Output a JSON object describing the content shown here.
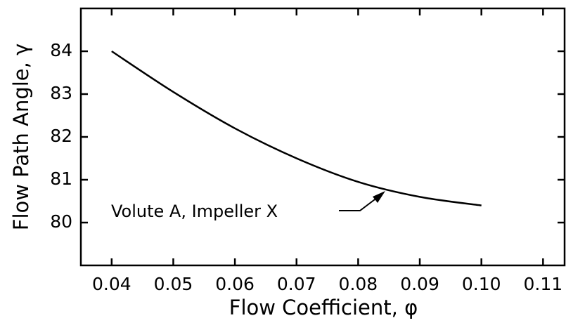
{
  "chart_data": {
    "type": "line",
    "x_label": "Flow Coefficient, φ",
    "y_label": "Flow Path Angle, γ",
    "x": [
      0.04,
      0.05,
      0.06,
      0.07,
      0.08,
      0.09,
      0.1
    ],
    "series": [
      {
        "name": "Volute A, Impeller X",
        "color": "#000000",
        "values": [
          84.0,
          83.05,
          82.2,
          81.5,
          80.95,
          80.6,
          80.4
        ]
      }
    ],
    "annotation": "Volute A, Impeller X",
    "xlim": [
      0.035,
      0.1135
    ],
    "ylim": [
      79.0,
      85.0
    ],
    "xticks": [
      0.04,
      0.05,
      0.06,
      0.07,
      0.08,
      0.09,
      {
        "value": 0.1,
        "label": "0.10"
      },
      0.11
    ],
    "yticks": [
      80,
      81,
      82,
      83,
      84
    ],
    "grid": false
  }
}
